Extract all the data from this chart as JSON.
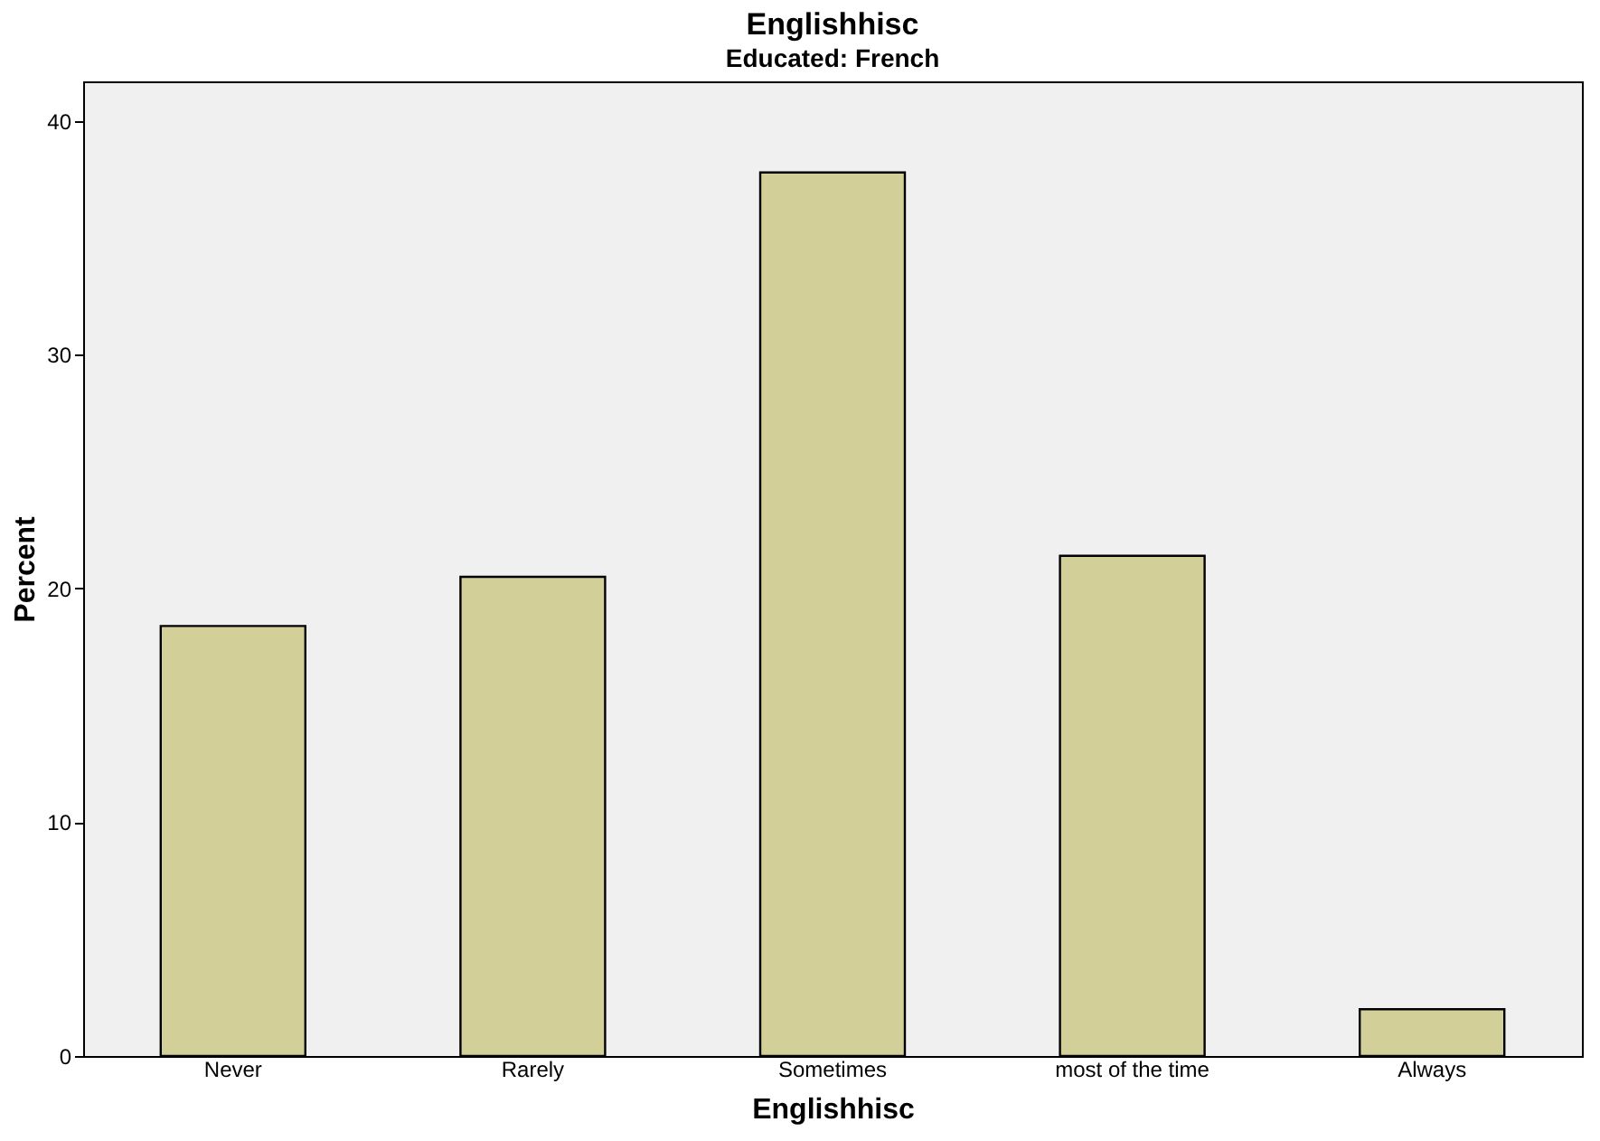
{
  "chart_data": {
    "type": "bar",
    "title": "Englishhisc",
    "subtitle": "Educated: French",
    "xlabel": "Englishhisc",
    "ylabel": "Percent",
    "categories": [
      "Never",
      "Rarely",
      "Sometimes",
      "most of the time",
      "Always"
    ],
    "values": [
      18.4,
      20.5,
      37.8,
      21.4,
      2.0
    ],
    "color": "#d3cf98",
    "ylim": [
      0,
      41.7
    ],
    "yticks": [
      0,
      10,
      20,
      30,
      40
    ],
    "grid": false
  }
}
